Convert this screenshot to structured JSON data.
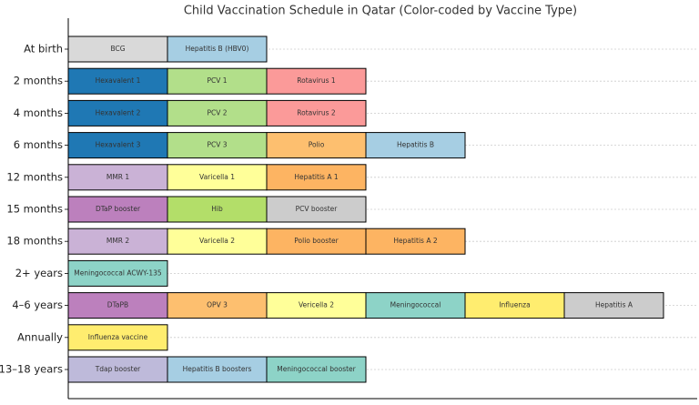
{
  "chart_data": {
    "type": "schedule",
    "title": "Child Vaccination Schedule in Qatar (Color-coded by Vaccine Type)",
    "categories": [
      "At birth",
      "2 months",
      "4 months",
      "6 months",
      "12 months",
      "15 months",
      "18 months",
      "2+ years",
      "4–6 years",
      "Annually",
      "13–18 years"
    ],
    "rows": [
      [
        {
          "name": "BCG",
          "color": "#d9d9d9"
        },
        {
          "name": "Hepatitis B (HBV0)",
          "color": "#a6cee3"
        }
      ],
      [
        {
          "name": "Hexavalent 1",
          "color": "#1f78b4"
        },
        {
          "name": "PCV 1",
          "color": "#b2df8a"
        },
        {
          "name": "Rotavirus 1",
          "color": "#fb9a99"
        }
      ],
      [
        {
          "name": "Hexavalent 2",
          "color": "#1f78b4"
        },
        {
          "name": "PCV 2",
          "color": "#b2df8a"
        },
        {
          "name": "Rotavirus 2",
          "color": "#fb9a99"
        }
      ],
      [
        {
          "name": "Hexavalent 3",
          "color": "#1f78b4"
        },
        {
          "name": "PCV 3",
          "color": "#b2df8a"
        },
        {
          "name": "Polio",
          "color": "#fdbf6f"
        },
        {
          "name": "Hepatitis B",
          "color": "#a6cee3"
        }
      ],
      [
        {
          "name": "MMR 1",
          "color": "#cab2d6"
        },
        {
          "name": "Varicella 1",
          "color": "#ffff99"
        },
        {
          "name": "Hepatitis A 1",
          "color": "#fdb462"
        }
      ],
      [
        {
          "name": "DTaP booster",
          "color": "#bc80bd"
        },
        {
          "name": "Hib",
          "color": "#b3de69"
        },
        {
          "name": "PCV booster",
          "color": "#cccccc"
        }
      ],
      [
        {
          "name": "MMR 2",
          "color": "#cab2d6"
        },
        {
          "name": "Varicella 2",
          "color": "#ffff99"
        },
        {
          "name": "Polio booster",
          "color": "#fdb462"
        },
        {
          "name": "Hepatitis A 2",
          "color": "#fdb462"
        }
      ],
      [
        {
          "name": "Meningococcal ACWY-135",
          "color": "#8dd3c7"
        }
      ],
      [
        {
          "name": "DTaPB",
          "color": "#bc80bd"
        },
        {
          "name": "OPV 3",
          "color": "#fdbf6f"
        },
        {
          "name": "Vericella 2",
          "color": "#ffff99"
        },
        {
          "name": "Meningococcal",
          "color": "#8dd3c7"
        },
        {
          "name": "Influenza",
          "color": "#ffed6f"
        },
        {
          "name": "Hepatitis A",
          "color": "#cccccc"
        }
      ],
      [
        {
          "name": "Influenza vaccine",
          "color": "#ffed6f"
        }
      ],
      [
        {
          "name": "Tdap booster",
          "color": "#bebada"
        },
        {
          "name": "Hepatitis B boosters",
          "color": "#a6cee3"
        },
        {
          "name": "Meningococcal booster",
          "color": "#8dd3c7"
        }
      ]
    ]
  }
}
